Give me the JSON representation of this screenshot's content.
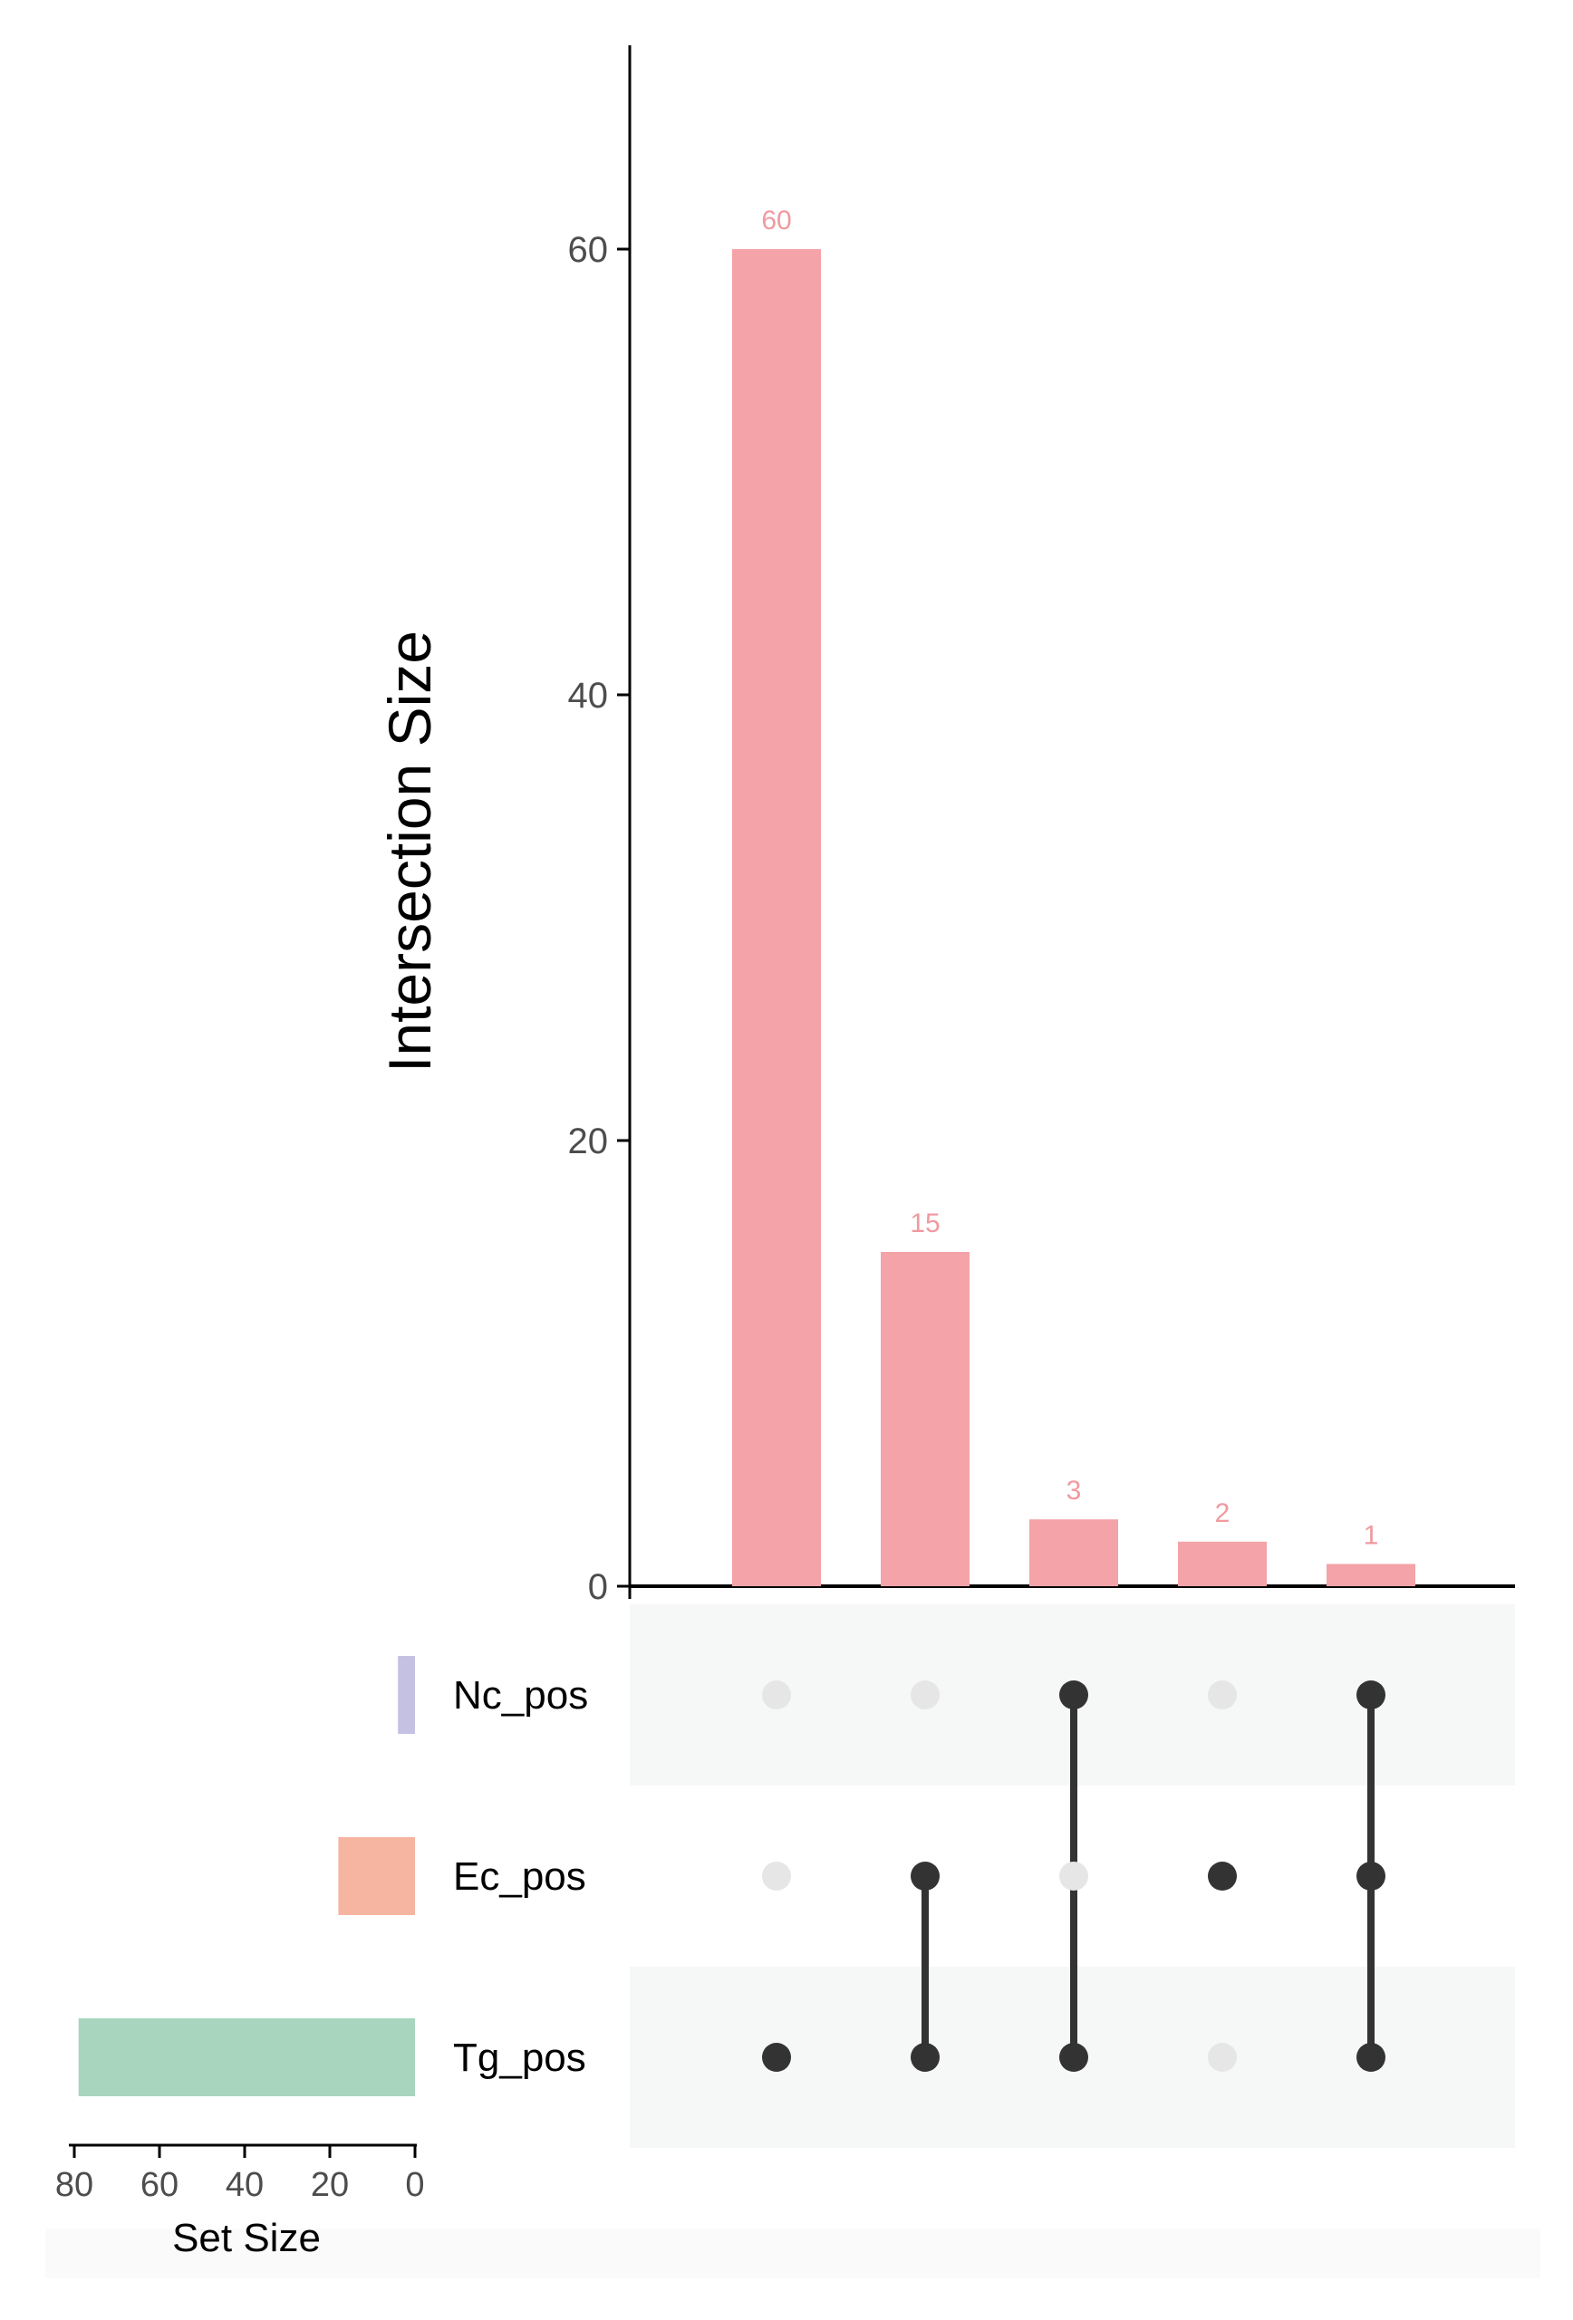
{
  "chart_data": {
    "type": "upset",
    "ylabel": "Intersection Size",
    "ylim": [
      0,
      69
    ],
    "yticks": [
      0,
      20,
      40,
      60
    ],
    "intersections": [
      {
        "sets": [
          "Tg_pos"
        ],
        "size": 60,
        "label": "60"
      },
      {
        "sets": [
          "Ec_pos",
          "Tg_pos"
        ],
        "size": 15,
        "label": "15"
      },
      {
        "sets": [
          "Nc_pos",
          "Tg_pos"
        ],
        "size": 3,
        "label": "3"
      },
      {
        "sets": [
          "Ec_pos"
        ],
        "size": 2,
        "label": "2"
      },
      {
        "sets": [
          "Nc_pos",
          "Ec_pos",
          "Tg_pos"
        ],
        "size": 1,
        "label": "1"
      }
    ],
    "sets": [
      {
        "name": "Nc_pos",
        "size": 4,
        "color": "#c5c1e3"
      },
      {
        "name": "Ec_pos",
        "size": 18,
        "color": "#f6b5a0"
      },
      {
        "name": "Tg_pos",
        "size": 79,
        "color": "#a8d5be"
      }
    ],
    "set_size_label": "Set Size",
    "set_size_ticks": [
      80,
      60,
      40,
      20,
      0
    ],
    "set_size_xlim": [
      0,
      80
    ],
    "bar_color": "#f4a3a8",
    "label_color": "#f09aa0",
    "dot_active_color": "#333333",
    "dot_inactive_color": "#e6e6e6",
    "stripe_color": "#f6f7f7"
  }
}
